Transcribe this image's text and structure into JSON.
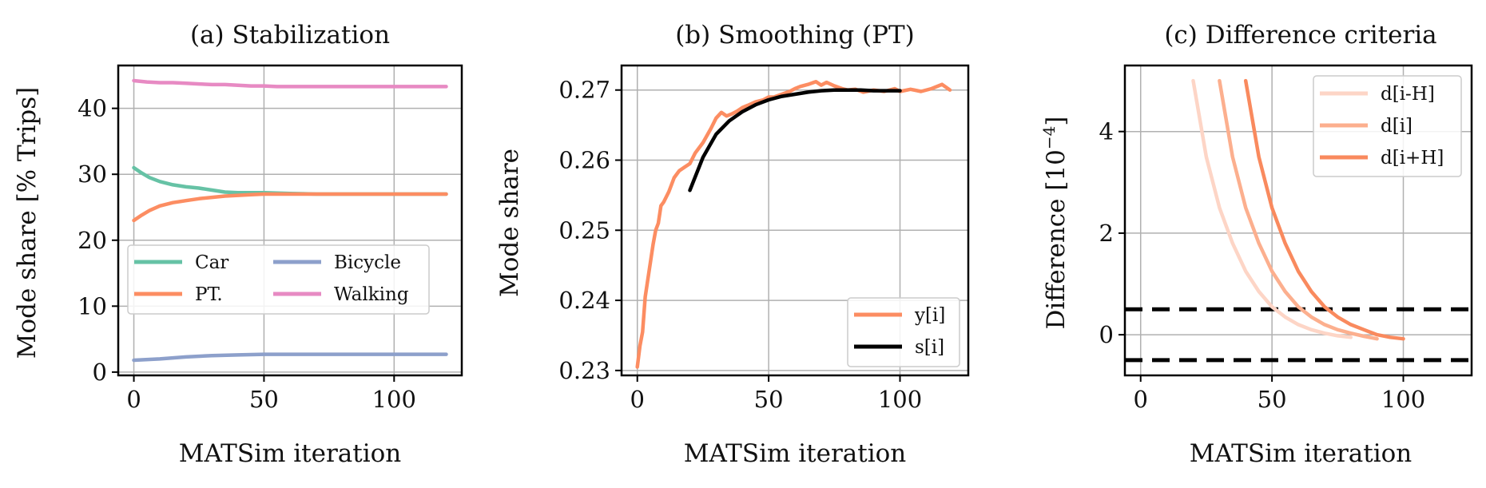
{
  "colors": {
    "car": "#66c2a5",
    "pt": "#fc8d62",
    "bicycle": "#8da0cb",
    "walking": "#e78ac3",
    "smooth": "#000000",
    "d_prev": "#fdd5c6",
    "d_cur": "#fcaf8e",
    "d_next": "#f98a5e",
    "threshold": "#000000"
  },
  "chart_data": [
    {
      "type": "line",
      "title": "(a) Stabilization",
      "xlabel": "MATSim iteration",
      "ylabel": "Mode share [% Trips]",
      "xlim": [
        -6,
        126
      ],
      "ylim": [
        -0.5,
        46.5
      ],
      "xticks": [
        0,
        50,
        100
      ],
      "yticks": [
        0,
        10,
        20,
        30,
        40
      ],
      "xtick_labels": [
        "0",
        "50",
        "100"
      ],
      "ytick_labels": [
        "0",
        "10",
        "20",
        "30",
        "40"
      ],
      "grid": true,
      "legend": {
        "position": "center-left",
        "columns": 2,
        "entries": [
          "Car",
          "PT.",
          "Bicycle",
          "Walking"
        ]
      },
      "series": [
        {
          "name": "Car",
          "color_key": "car",
          "x": [
            0,
            3,
            6,
            10,
            15,
            20,
            25,
            30,
            35,
            40,
            45,
            50,
            60,
            70,
            80,
            90,
            100,
            110,
            120
          ],
          "y": [
            31.0,
            30.2,
            29.5,
            28.9,
            28.4,
            28.1,
            27.9,
            27.6,
            27.3,
            27.2,
            27.2,
            27.2,
            27.1,
            27.0,
            27.0,
            27.0,
            27.0,
            27.0,
            27.0
          ]
        },
        {
          "name": "PT.",
          "color_key": "pt",
          "x": [
            0,
            3,
            6,
            10,
            15,
            20,
            25,
            30,
            35,
            40,
            45,
            50,
            60,
            70,
            80,
            90,
            100,
            110,
            120
          ],
          "y": [
            23.0,
            23.8,
            24.5,
            25.2,
            25.7,
            26.0,
            26.3,
            26.5,
            26.7,
            26.8,
            26.9,
            27.0,
            27.0,
            27.0,
            27.0,
            27.0,
            27.0,
            27.0,
            27.0
          ]
        },
        {
          "name": "Bicycle",
          "color_key": "bicycle",
          "x": [
            0,
            10,
            20,
            30,
            40,
            50,
            60,
            70,
            80,
            90,
            100,
            110,
            120
          ],
          "y": [
            1.8,
            2.0,
            2.3,
            2.5,
            2.6,
            2.7,
            2.7,
            2.7,
            2.7,
            2.7,
            2.7,
            2.7,
            2.7
          ]
        },
        {
          "name": "Walking",
          "color_key": "walking",
          "x": [
            0,
            5,
            10,
            15,
            20,
            25,
            30,
            35,
            40,
            45,
            50,
            55,
            60,
            70,
            80,
            90,
            100,
            110,
            120
          ],
          "y": [
            44.2,
            44.0,
            43.9,
            43.9,
            43.8,
            43.7,
            43.6,
            43.6,
            43.5,
            43.4,
            43.4,
            43.3,
            43.3,
            43.3,
            43.3,
            43.3,
            43.3,
            43.3,
            43.3
          ]
        }
      ]
    },
    {
      "type": "line",
      "title": "(b) Smoothing (PT)",
      "xlabel": "MATSim iteration",
      "ylabel": "Mode share",
      "xlim": [
        -6,
        126
      ],
      "ylim": [
        0.2293,
        0.2735
      ],
      "xticks": [
        0,
        50,
        100
      ],
      "yticks": [
        0.23,
        0.24,
        0.25,
        0.26,
        0.27
      ],
      "xtick_labels": [
        "0",
        "50",
        "100"
      ],
      "ytick_labels": [
        "0.23",
        "0.24",
        "0.25",
        "0.26",
        "0.27"
      ],
      "grid": true,
      "legend": {
        "position": "lower-right",
        "columns": 1,
        "entries": [
          "y[i]",
          "s[i]"
        ]
      },
      "series": [
        {
          "name": "y[i]",
          "color_key": "pt",
          "x": [
            0,
            1,
            2,
            3,
            4,
            5,
            6,
            7,
            8,
            9,
            10,
            12,
            14,
            16,
            18,
            20,
            22,
            25,
            28,
            30,
            32,
            34,
            36,
            38,
            40,
            42,
            45,
            48,
            50,
            52,
            55,
            58,
            60,
            62,
            65,
            68,
            70,
            72,
            75,
            78,
            80,
            83,
            86,
            90,
            94,
            98,
            100,
            104,
            108,
            112,
            116,
            119
          ],
          "y": [
            0.2305,
            0.2335,
            0.2355,
            0.2405,
            0.243,
            0.2455,
            0.248,
            0.25,
            0.251,
            0.2535,
            0.254,
            0.2555,
            0.2575,
            0.2585,
            0.259,
            0.2595,
            0.261,
            0.2625,
            0.2645,
            0.266,
            0.2668,
            0.2663,
            0.2666,
            0.267,
            0.2675,
            0.2678,
            0.2683,
            0.2686,
            0.269,
            0.269,
            0.2694,
            0.2698,
            0.2702,
            0.2705,
            0.2708,
            0.2712,
            0.2707,
            0.2711,
            0.2706,
            0.2702,
            0.27,
            0.2701,
            0.2697,
            0.27,
            0.2698,
            0.2702,
            0.2698,
            0.2701,
            0.2698,
            0.2702,
            0.2708,
            0.27
          ]
        },
        {
          "name": "s[i]",
          "color_key": "smooth",
          "x": [
            20,
            25,
            30,
            35,
            40,
            45,
            50,
            55,
            60,
            65,
            70,
            75,
            80,
            85,
            90,
            95,
            100
          ],
          "y": [
            0.2557,
            0.2604,
            0.2637,
            0.2656,
            0.2669,
            0.2679,
            0.2686,
            0.2691,
            0.2694,
            0.2697,
            0.2699,
            0.27,
            0.27,
            0.27,
            0.2699,
            0.2699,
            0.2699
          ]
        }
      ]
    },
    {
      "type": "line",
      "title": "(c) Difference criteria",
      "xlabel": "MATSim iteration",
      "ylabel": "Difference [10",
      "ylabel_superscript": "−4",
      "ylabel_suffix": "]",
      "xlim": [
        -6,
        126
      ],
      "ylim": [
        -0.8,
        5.3
      ],
      "xticks": [
        0,
        50,
        100
      ],
      "yticks": [
        0,
        2,
        4
      ],
      "xtick_labels": [
        "0",
        "50",
        "100"
      ],
      "ytick_labels": [
        "0",
        "2",
        "4"
      ],
      "grid": true,
      "thresholds": [
        0.5,
        -0.5
      ],
      "legend": {
        "position": "upper-right",
        "columns": 1,
        "entries": [
          "d[i-H]",
          "d[i]",
          "d[i+H]"
        ]
      },
      "series": [
        {
          "name": "d[i-H]",
          "color_key": "d_prev",
          "x": [
            20,
            25,
            30,
            35,
            40,
            45,
            50,
            55,
            60,
            65,
            70,
            75,
            80
          ],
          "y": [
            5.0,
            3.5,
            2.5,
            1.8,
            1.25,
            0.85,
            0.55,
            0.35,
            0.2,
            0.1,
            0.03,
            -0.02,
            -0.05
          ]
        },
        {
          "name": "d[i]",
          "color_key": "d_cur",
          "x": [
            30,
            35,
            40,
            45,
            50,
            55,
            60,
            65,
            70,
            75,
            80,
            85,
            90
          ],
          "y": [
            5.0,
            3.5,
            2.5,
            1.8,
            1.25,
            0.85,
            0.55,
            0.35,
            0.2,
            0.1,
            0.03,
            -0.03,
            -0.08
          ]
        },
        {
          "name": "d[i+H]",
          "color_key": "d_next",
          "x": [
            40,
            45,
            50,
            55,
            60,
            65,
            70,
            75,
            80,
            85,
            90,
            95,
            100
          ],
          "y": [
            5.0,
            3.5,
            2.5,
            1.8,
            1.25,
            0.85,
            0.55,
            0.35,
            0.2,
            0.1,
            0.0,
            -0.05,
            -0.08
          ]
        }
      ]
    }
  ]
}
